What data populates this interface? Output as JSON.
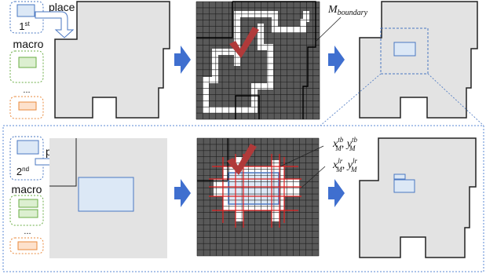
{
  "top_row": {
    "place_label": "place",
    "step_number": "1",
    "step_suffix": "st",
    "macro_label": "macro",
    "ellipsis": "...",
    "boundary_label_base": "M",
    "boundary_label_sub": "boundary"
  },
  "bottom_row": {
    "place_label": "place",
    "step_number": "2",
    "step_suffix": "nd",
    "macro_label": "macro",
    "ellipsis": "...",
    "tb_label": {
      "x": "x",
      "x_sup": "tb",
      "x_sub": "M",
      "sep": ", ",
      "y": "y",
      "y_sup": "tb",
      "y_sub": "M"
    },
    "lr_label": {
      "x": "x",
      "x_sup": "lr",
      "x_sub": "M",
      "sep": ", ",
      "y": "y",
      "y_sup": "lr",
      "y_sub": "M"
    }
  },
  "icons": {
    "arrow": "right-arrow-icon",
    "place_arrow": "curved-arrow-icon",
    "check": "check-mark-icon"
  },
  "colors": {
    "macro_blue_fill": "#dce8f6",
    "macro_blue_stroke": "#4a77c2",
    "green_stroke": "#6aac45",
    "green_fill": "#dcefd0",
    "orange_stroke": "#e98a3c",
    "orange_fill": "#fde1cc",
    "arrow": "#3f6fcf",
    "grid_bg": "#595959",
    "grid_line": "#1e1e1e",
    "check": "#b03a3a",
    "overlap_red": "#e02020",
    "region_gray": "#e3e3e3",
    "divider": "#5b8ad6"
  }
}
